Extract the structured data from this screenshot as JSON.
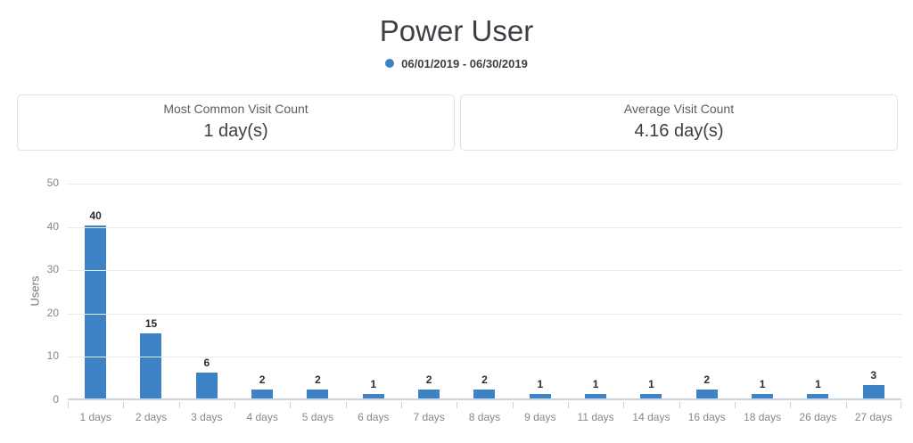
{
  "title": "Power User",
  "legend": {
    "label": "06/01/2019 - 06/30/2019",
    "color": "#3c82c4"
  },
  "stats": [
    {
      "label": "Most Common Visit Count",
      "value": "1 day(s)"
    },
    {
      "label": "Average Visit Count",
      "value": "4.16 day(s)"
    }
  ],
  "chart_data": {
    "type": "bar",
    "title": "Power User",
    "categories": [
      "1 days",
      "2 days",
      "3 days",
      "4 days",
      "5 days",
      "6 days",
      "7 days",
      "8 days",
      "9 days",
      "11 days",
      "14 days",
      "16 days",
      "18 days",
      "26 days",
      "27 days"
    ],
    "series": [
      {
        "name": "06/01/2019 - 06/30/2019",
        "values": [
          40,
          15,
          6,
          2,
          2,
          1,
          2,
          2,
          1,
          1,
          1,
          2,
          1,
          1,
          3
        ]
      }
    ],
    "xlabel": "",
    "ylabel": "Users",
    "ylim": [
      0,
      50
    ],
    "yticks": [
      0,
      10,
      20,
      30,
      40,
      50
    ],
    "bar_color": "#3c82c4",
    "grid": true,
    "value_labels": true,
    "legend_position": "top"
  }
}
